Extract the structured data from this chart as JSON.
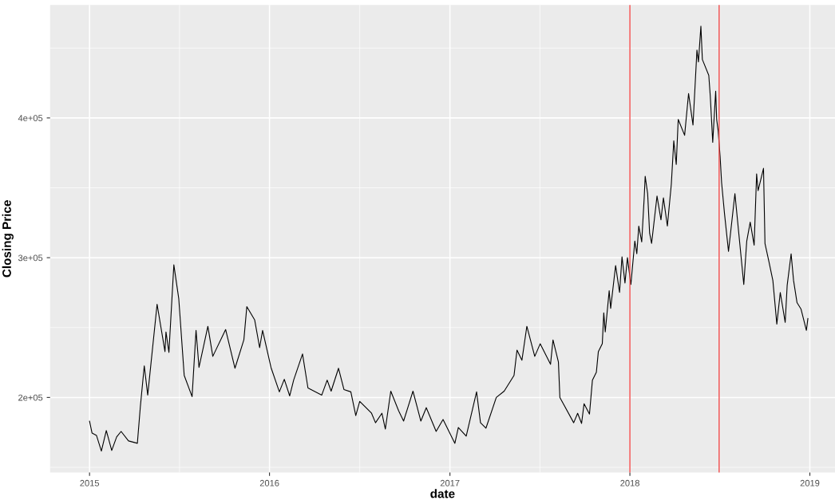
{
  "chart_data": {
    "type": "line",
    "xlabel": "date",
    "ylabel": "Closing Price",
    "x": [
      "2015-01-01",
      "2015-01-06",
      "2015-01-15",
      "2015-01-25",
      "2015-02-04",
      "2015-02-15",
      "2015-02-25",
      "2015-03-06",
      "2015-03-21",
      "2015-04-08",
      "2015-04-14",
      "2015-04-22",
      "2015-04-29",
      "2015-05-18",
      "2015-06-03",
      "2015-06-05",
      "2015-06-11",
      "2015-06-21",
      "2015-07-01",
      "2015-07-12",
      "2015-07-28",
      "2015-08-05",
      "2015-08-11",
      "2015-08-29",
      "2015-09-08",
      "2015-10-04",
      "2015-10-23",
      "2015-11-10",
      "2015-11-16",
      "2015-12-02",
      "2015-12-12",
      "2015-12-18",
      "2016-01-04",
      "2016-01-21",
      "2016-01-31",
      "2016-02-11",
      "2016-02-19",
      "2016-03-08",
      "2016-03-19",
      "2016-04-16",
      "2016-04-27",
      "2016-05-05",
      "2016-05-20",
      "2016-05-31",
      "2016-06-14",
      "2016-06-24",
      "2016-07-02",
      "2016-07-26",
      "2016-08-03",
      "2016-08-16",
      "2016-08-23",
      "2016-09-03",
      "2016-09-19",
      "2016-09-29",
      "2016-10-18",
      "2016-11-03",
      "2016-11-14",
      "2016-12-04",
      "2016-12-18",
      "2017-01-11",
      "2017-01-18",
      "2017-02-03",
      "2017-02-24",
      "2017-03-04",
      "2017-03-15",
      "2017-04-05",
      "2017-04-21",
      "2017-05-11",
      "2017-05-17",
      "2017-05-27",
      "2017-06-06",
      "2017-06-22",
      "2017-07-03",
      "2017-07-24",
      "2017-07-29",
      "2017-08-09",
      "2017-08-12",
      "2017-09-09",
      "2017-09-17",
      "2017-09-25",
      "2017-09-30",
      "2017-10-11",
      "2017-10-17",
      "2017-10-25",
      "2017-10-29",
      "2017-11-06",
      "2017-11-09",
      "2017-11-12",
      "2017-11-20",
      "2017-11-23",
      "2017-12-03",
      "2017-12-11",
      "2017-12-16",
      "2017-12-22",
      "2017-12-27",
      "2018-01-03",
      "2018-01-11",
      "2018-01-15",
      "2018-01-19",
      "2018-01-25",
      "2018-01-30",
      "2018-02-01",
      "2018-02-06",
      "2018-02-10",
      "2018-02-14",
      "2018-02-25",
      "2018-03-05",
      "2018-03-10",
      "2018-03-18",
      "2018-03-26",
      "2018-03-31",
      "2018-04-05",
      "2018-04-09",
      "2018-04-22",
      "2018-04-30",
      "2018-05-09",
      "2018-05-17",
      "2018-05-20",
      "2018-05-25",
      "2018-05-28",
      "2018-06-10",
      "2018-06-13",
      "2018-06-18",
      "2018-06-24",
      "2018-06-26",
      "2018-06-29",
      "2018-07-03",
      "2018-07-06",
      "2018-07-12",
      "2018-07-20",
      "2018-08-02",
      "2018-08-20",
      "2018-08-26",
      "2018-09-02",
      "2018-09-10",
      "2018-09-15",
      "2018-09-18",
      "2018-09-29",
      "2018-10-02",
      "2018-10-10",
      "2018-10-18",
      "2018-10-26",
      "2018-11-02",
      "2018-11-12",
      "2018-11-16",
      "2018-11-24",
      "2018-11-29",
      "2018-12-06",
      "2018-12-14",
      "2018-12-25",
      "2018-12-28"
    ],
    "series": [
      {
        "color": "#000000",
        "values": [
          183000,
          174600,
          172900,
          161600,
          176300,
          162100,
          171800,
          175700,
          168900,
          167200,
          193200,
          222600,
          201700,
          266700,
          232800,
          246900,
          232200,
          294900,
          270600,
          215800,
          200600,
          248000,
          221500,
          250900,
          229400,
          248600,
          220900,
          241200,
          265000,
          255400,
          235600,
          248000,
          221500,
          204000,
          213000,
          201100,
          212400,
          231100,
          206800,
          201700,
          212400,
          204500,
          220900,
          205700,
          204000,
          187000,
          197200,
          188700,
          181900,
          188700,
          177400,
          204500,
          190400,
          183100,
          204500,
          183100,
          192700,
          175700,
          184200,
          167200,
          178500,
          172300,
          204000,
          181900,
          178000,
          200000,
          204500,
          215800,
          233900,
          226600,
          250900,
          229400,
          238400,
          223700,
          241200,
          225400,
          200000,
          181900,
          188700,
          181400,
          195500,
          188100,
          212400,
          218100,
          232800,
          238400,
          260500,
          246900,
          276300,
          263800,
          294400,
          275100,
          300600,
          281900,
          300000,
          280800,
          311900,
          302800,
          322600,
          311300,
          343000,
          358200,
          345800,
          317500,
          310200,
          344100,
          327100,
          342900,
          322600,
          352600,
          383600,
          366700,
          398900,
          387600,
          417500,
          394900,
          448600,
          440100,
          465600,
          441800,
          430500,
          415800,
          382500,
          419200,
          398900,
          391000,
          372300,
          353700,
          331100,
          304500,
          345800,
          280800,
          311900,
          325400,
          309000,
          359900,
          348000,
          363900,
          310200,
          297200,
          283600,
          252500,
          275100,
          253700,
          280200,
          302800,
          283600,
          267800,
          263300,
          248000,
          256500
        ]
      }
    ],
    "xlim": [
      "2014-10-13",
      "2019-02-21"
    ],
    "xticks": [
      {
        "value": "2015-01-01",
        "label": "2015"
      },
      {
        "value": "2016-01-01",
        "label": "2016"
      },
      {
        "value": "2017-01-01",
        "label": "2017"
      },
      {
        "value": "2018-01-01",
        "label": "2018"
      },
      {
        "value": "2019-01-01",
        "label": "2019"
      }
    ],
    "ylim": [
      146300,
      480800
    ],
    "yticks": [
      {
        "value": 200000,
        "label": "2e+05"
      },
      {
        "value": 300000,
        "label": "3e+05"
      },
      {
        "value": 400000,
        "label": "4e+05"
      }
    ],
    "ref_lines": [
      {
        "axis": "x",
        "value": "2018-01-01",
        "color": "#f04848"
      },
      {
        "axis": "x",
        "value": "2018-07-01",
        "color": "#f04848"
      }
    ],
    "grid": true,
    "line_style": "solid"
  }
}
